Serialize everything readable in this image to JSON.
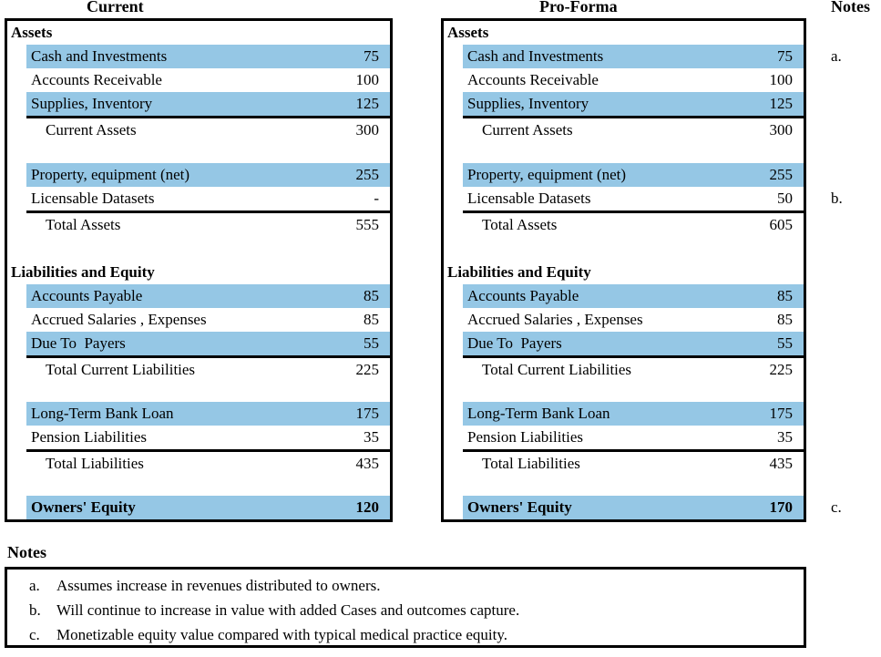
{
  "headers": {
    "current": "Current",
    "proforma": "Pro-Forma",
    "notes_col": "Notes"
  },
  "colors": {
    "highlight": "#95C7E5",
    "border": "#000000"
  },
  "tables": {
    "current": {
      "rows": [
        {
          "type": "section",
          "label": "Assets"
        },
        {
          "type": "item",
          "label": "Cash and Investments",
          "value": "75"
        },
        {
          "type": "item",
          "label": "Accounts Receivable",
          "value": "100"
        },
        {
          "type": "item",
          "label": "Supplies, Inventory",
          "value": "125"
        },
        {
          "type": "subtotal",
          "label": "Current Assets",
          "value": "300"
        },
        {
          "type": "spacer"
        },
        {
          "type": "item",
          "label": "Property, equipment (net)",
          "value": "255"
        },
        {
          "type": "item",
          "label": "Licensable Datasets",
          "value": "-"
        },
        {
          "type": "subtotal",
          "label": "Total Assets",
          "value": "555"
        },
        {
          "type": "spacer"
        },
        {
          "type": "section",
          "label": "Liabilities and Equity"
        },
        {
          "type": "item",
          "label": "Accounts Payable",
          "value": "85"
        },
        {
          "type": "item",
          "label": "Accrued Salaries , Expenses",
          "value": "85"
        },
        {
          "type": "item",
          "label": "Due To  Payers",
          "value": "55"
        },
        {
          "type": "subtotal",
          "label": "Total Current Liabilities",
          "value": "225"
        },
        {
          "type": "spacer"
        },
        {
          "type": "item",
          "label": "Long-Term Bank Loan",
          "value": "175"
        },
        {
          "type": "item",
          "label": "Pension Liabilities",
          "value": "35"
        },
        {
          "type": "subtotal",
          "label": "Total Liabilities",
          "value": "435"
        },
        {
          "type": "spacer"
        },
        {
          "type": "equity",
          "label": "Owners' Equity",
          "value": "120"
        }
      ]
    },
    "proforma": {
      "rows": [
        {
          "type": "section",
          "label": "Assets"
        },
        {
          "type": "item",
          "label": "Cash and Investments",
          "value": "75",
          "note": "a."
        },
        {
          "type": "item",
          "label": "Accounts Receivable",
          "value": "100"
        },
        {
          "type": "item",
          "label": "Supplies, Inventory",
          "value": "125"
        },
        {
          "type": "subtotal",
          "label": "Current Assets",
          "value": "300"
        },
        {
          "type": "spacer"
        },
        {
          "type": "item",
          "label": "Property, equipment (net)",
          "value": "255"
        },
        {
          "type": "item",
          "label": "Licensable Datasets",
          "value": "50",
          "note": "b."
        },
        {
          "type": "subtotal",
          "label": "Total Assets",
          "value": "605"
        },
        {
          "type": "spacer"
        },
        {
          "type": "section",
          "label": "Liabilities and Equity"
        },
        {
          "type": "item",
          "label": "Accounts Payable",
          "value": "85"
        },
        {
          "type": "item",
          "label": "Accrued Salaries , Expenses",
          "value": "85"
        },
        {
          "type": "item",
          "label": "Due To  Payers",
          "value": "55"
        },
        {
          "type": "subtotal",
          "label": "Total Current Liabilities",
          "value": "225"
        },
        {
          "type": "spacer"
        },
        {
          "type": "item",
          "label": "Long-Term Bank Loan",
          "value": "175"
        },
        {
          "type": "item",
          "label": "Pension Liabilities",
          "value": "35"
        },
        {
          "type": "subtotal",
          "label": "Total Liabilities",
          "value": "435"
        },
        {
          "type": "spacer"
        },
        {
          "type": "equity",
          "label": "Owners' Equity",
          "value": "170",
          "note": "c."
        }
      ]
    }
  },
  "notes": {
    "heading": "Notes",
    "items": [
      {
        "marker": "a.",
        "text": "Assumes increase in revenues distributed to owners."
      },
      {
        "marker": "b.",
        "text": "Will continue to increase in value with added Cases and outcomes capture."
      },
      {
        "marker": "c.",
        "text": "Monetizable equity value compared with typical medical practice equity."
      }
    ]
  }
}
